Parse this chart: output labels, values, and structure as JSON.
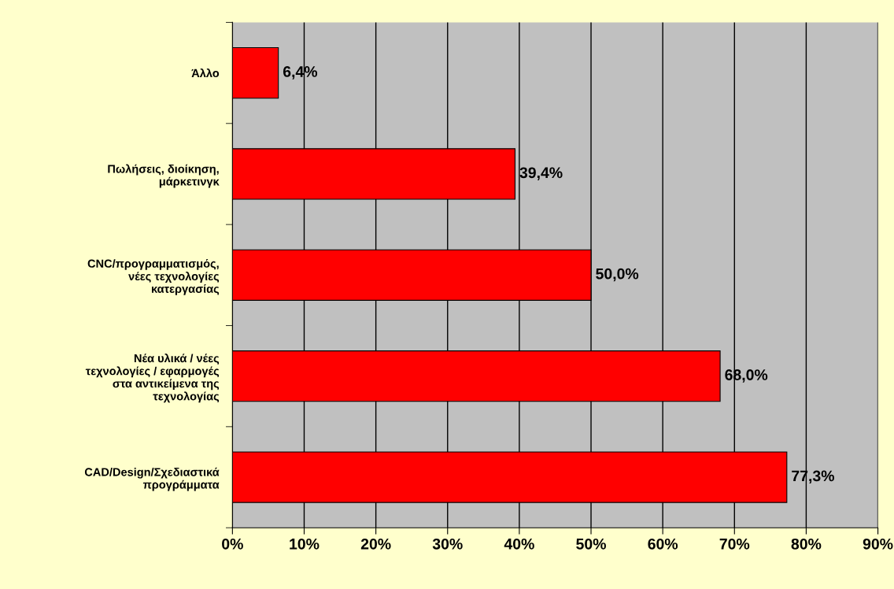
{
  "chart_data": {
    "type": "bar",
    "orientation": "horizontal",
    "categories": [
      "Άλλο",
      "Πωλήσεις, διοίκηση,\nμάρκετινγκ",
      "CNC/προγραμματισμός,\nνέες τεχνολογίες\nκατεργασίας",
      "Νέα υλικά / νέες\nτεχνολογίες / εφαρμογές\nστα αντικείμενα της\nτεχνολογίας",
      "CAD/Design/Σχεδιαστικά\nπρογράμματα"
    ],
    "values": [
      6.4,
      39.4,
      50.0,
      68.0,
      77.3
    ],
    "value_labels": [
      "6,4%",
      "39,4%",
      "50,0%",
      "68,0%",
      "77,3%"
    ],
    "color": "#ff0000",
    "xlim": [
      0,
      90
    ],
    "xticks": [
      {
        "value": 0,
        "label": "0%"
      },
      {
        "value": 10,
        "label": "10%"
      },
      {
        "value": 20,
        "label": "20%"
      },
      {
        "value": 30,
        "label": "30%"
      },
      {
        "value": 40,
        "label": "40%"
      },
      {
        "value": 50,
        "label": "50%"
      },
      {
        "value": 60,
        "label": "60%"
      },
      {
        "value": 70,
        "label": "70%"
      },
      {
        "value": 80,
        "label": "80%"
      },
      {
        "value": 90,
        "label": "90%"
      }
    ],
    "grid": "x",
    "legend": false
  }
}
